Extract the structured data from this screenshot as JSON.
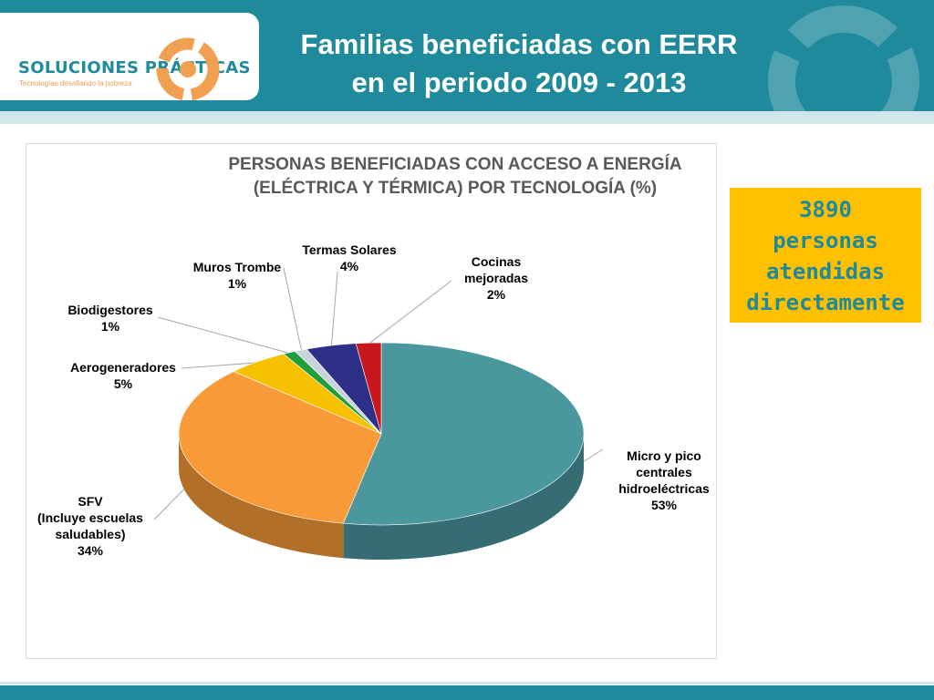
{
  "brand": {
    "name": "SOLUCIONES PRÁCTICAS",
    "tagline": "Tecnologías desafiando la pobreza",
    "colors": {
      "primary": "#1e8a9b",
      "accent": "#f0a050"
    }
  },
  "slide": {
    "title_line1": "Familias beneficiadas con EERR",
    "title_line2": "en el periodo 2009 - 2013"
  },
  "callout": {
    "number": "3890",
    "line1": "personas",
    "line2": "atendidas",
    "line3": "directamente",
    "background": "#ffc000"
  },
  "chart_data": {
    "type": "pie",
    "style": "3d",
    "title_line1": "PERSONAS BENEFICIADAS CON ACCESO A ENERGÍA",
    "title_line2": "(ELÉCTRICA Y TÉRMICA) POR TECNOLOGÍA (%)",
    "slices": [
      {
        "id": "micro",
        "label_lines": [
          "Micro y pico",
          "centrales",
          "hidroeléctricas"
        ],
        "value": 53,
        "display": "53%",
        "color": "#4a979e"
      },
      {
        "id": "sfv",
        "label_lines": [
          "SFV",
          "(Incluye escuelas",
          "saludables)"
        ],
        "value": 34,
        "display": "34%",
        "color": "#f79a37"
      },
      {
        "id": "aero",
        "label_lines": [
          "Aerogeneradores"
        ],
        "value": 5,
        "display": "5%",
        "color": "#f5c100"
      },
      {
        "id": "bio",
        "label_lines": [
          "Biodigestores"
        ],
        "value": 1,
        "display": "1%",
        "color": "#1f9e3b"
      },
      {
        "id": "muros",
        "label_lines": [
          "Muros Trombe"
        ],
        "value": 1,
        "display": "1%",
        "color": "#c9d3dc"
      },
      {
        "id": "termas",
        "label_lines": [
          "Termas Solares"
        ],
        "value": 4,
        "display": "4%",
        "color": "#2e2f86"
      },
      {
        "id": "cocinas",
        "label_lines": [
          "Cocinas",
          "mejoradas"
        ],
        "value": 2,
        "display": "2%",
        "color": "#c8161d"
      }
    ]
  }
}
